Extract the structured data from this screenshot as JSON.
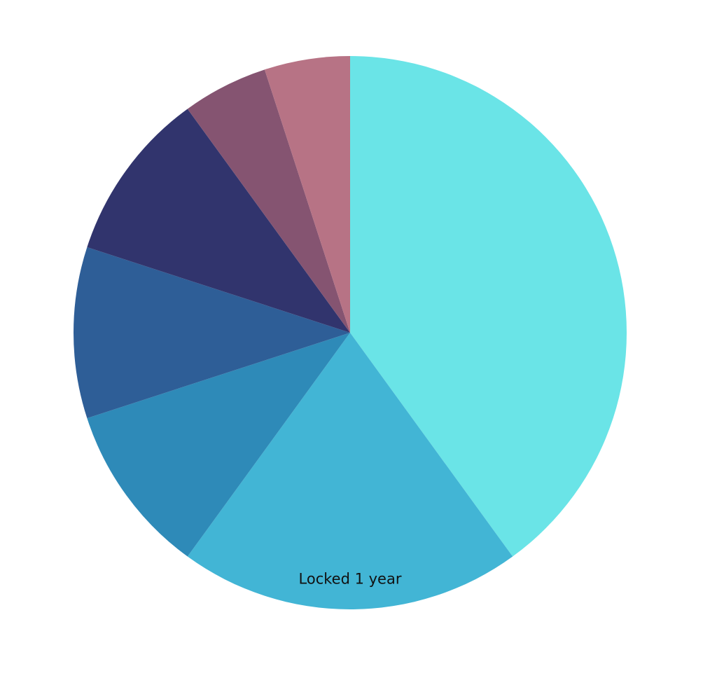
{
  "chart_data": {
    "type": "pie",
    "title": "",
    "start_angle_deg": 0,
    "direction": "clockwise",
    "slices": [
      {
        "label": "",
        "value": 40,
        "color": "#6ae4e7"
      },
      {
        "label": "Locked 1 year",
        "value": 20,
        "color": "#42b5d5"
      },
      {
        "label": "",
        "value": 10,
        "color": "#2e8ab8"
      },
      {
        "label": "",
        "value": 10,
        "color": "#2e5e97"
      },
      {
        "label": "",
        "value": 10,
        "color": "#31346d"
      },
      {
        "label": "",
        "value": 5,
        "color": "#855471"
      },
      {
        "label": "",
        "value": 5,
        "color": "#b77385"
      }
    ]
  }
}
